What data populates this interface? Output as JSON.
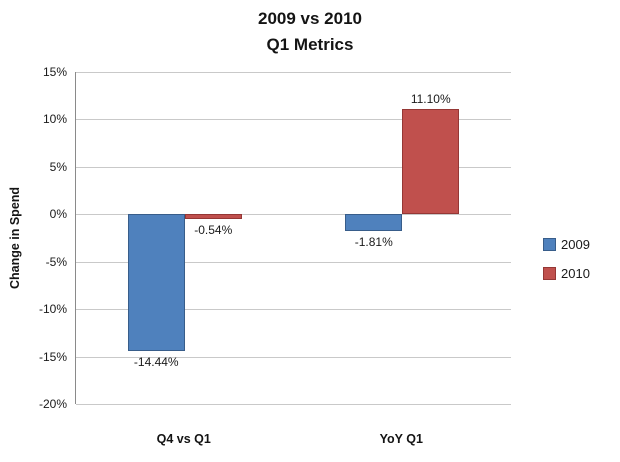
{
  "chart_data": {
    "type": "bar",
    "title": "2009 vs 2010 Q1 Metrics",
    "title_lines": [
      "2009 vs 2010",
      "Q1 Metrics"
    ],
    "xlabel": "",
    "ylabel": "Change in Spend",
    "categories": [
      "Q4 vs Q1",
      "YoY Q1"
    ],
    "series": [
      {
        "name": "2009",
        "color": "#4F81BD",
        "border": "#385D8A",
        "values": [
          -14.44,
          -1.81
        ]
      },
      {
        "name": "2010",
        "color": "#C0504D",
        "border": "#953735",
        "values": [
          -0.54,
          11.1
        ]
      }
    ],
    "data_labels": [
      [
        "-14.44%",
        "-1.81%"
      ],
      [
        "-0.54%",
        "11.10%"
      ]
    ],
    "ylim": [
      -20,
      15
    ],
    "ytick_step": 5,
    "ytick_labels": [
      "15%",
      "10%",
      "5%",
      "0%",
      "-5%",
      "-10%",
      "-15%",
      "-20%"
    ],
    "grid": true,
    "legend_position": "right",
    "legend": [
      "2009",
      "2010"
    ]
  }
}
